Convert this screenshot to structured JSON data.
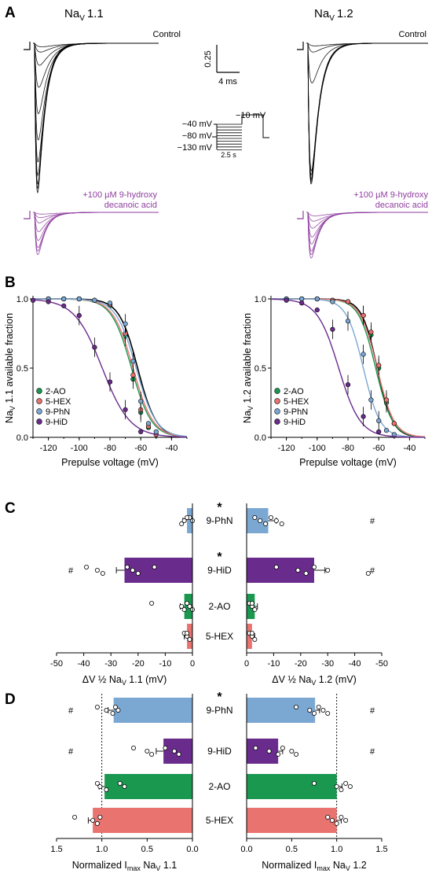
{
  "panel_letters": [
    "A",
    "B",
    "C",
    "D"
  ],
  "panel_a": {
    "title_left": "Na",
    "title_left_sub": "V",
    "title_left_num": "1.1",
    "title_right": "Na",
    "title_right_sub": "V",
    "title_right_num": "1.2",
    "control_label": "Control",
    "drug_label_1": "+100 µM 9-hydroxy",
    "drug_label_2": "decanoic acid",
    "scale_y": "0.25",
    "scale_x": "4 ms",
    "protocol": {
      "v_hold_1": "−40 mV",
      "v_hold_2": "−80 mV",
      "v_hold_3": "−130 mV",
      "v_test": "−10 mV",
      "duration": "2.5 s"
    },
    "trace_colors": {
      "control": "#000000",
      "drug": "#8e3e9e"
    }
  },
  "chart_data": [
    {
      "type": "line",
      "panel": "B-left",
      "xlabel": "Prepulse voltage (mV)",
      "ylabel_pre": "Na",
      "ylabel_sub": "V",
      "ylabel_post": " 1.1 available fraction",
      "xlim": [
        -130,
        -30
      ],
      "ylim": [
        0,
        1.0
      ],
      "xticks": [
        -120,
        -100,
        -80,
        -60,
        -40
      ],
      "yticks": [
        0.0,
        0.5,
        1.0
      ],
      "legend_position": "bottom-left",
      "series": [
        {
          "name": "2-AO",
          "color": "#1a9850",
          "v_half": -66,
          "k": 6.5,
          "x": [
            -120,
            -110,
            -100,
            -90,
            -80,
            -70,
            -65,
            -60,
            -55,
            -50
          ],
          "y": [
            1.0,
            1.0,
            1.0,
            0.99,
            0.95,
            0.73,
            0.42,
            0.18,
            0.07,
            0.02
          ]
        },
        {
          "name": "5-HEX",
          "color": "#e8736f",
          "v_half": -65,
          "k": 6.5,
          "x": [
            -120,
            -110,
            -100,
            -90,
            -80,
            -70,
            -65,
            -60,
            -55,
            -50
          ],
          "y": [
            1.0,
            1.0,
            1.0,
            0.99,
            0.96,
            0.75,
            0.45,
            0.2,
            0.08,
            0.02
          ]
        },
        {
          "name": "9-PhN",
          "color": "#7ba7d3",
          "v_half": -63,
          "k": 6.5,
          "x": [
            -120,
            -110,
            -100,
            -90,
            -80,
            -70,
            -65,
            -60,
            -55,
            -50
          ],
          "y": [
            1.0,
            1.0,
            1.0,
            0.99,
            0.97,
            0.82,
            0.55,
            0.26,
            0.1,
            0.04
          ]
        },
        {
          "name": "9-HiD",
          "color": "#6a2c8c",
          "v_half": -85,
          "k": 9,
          "x": [
            -130,
            -120,
            -110,
            -100,
            -90,
            -80,
            -70,
            -60
          ],
          "y": [
            0.99,
            0.98,
            0.95,
            0.88,
            0.65,
            0.4,
            0.2,
            0.04
          ]
        }
      ]
    },
    {
      "type": "line",
      "panel": "B-right",
      "xlabel": "Prepulse voltage (mV)",
      "ylabel_pre": "Na",
      "ylabel_sub": "V",
      "ylabel_post": " 1.2 available fraction",
      "xlim": [
        -130,
        -30
      ],
      "ylim": [
        0,
        1.0
      ],
      "xticks": [
        -120,
        -100,
        -80,
        -60,
        -40
      ],
      "yticks": [
        0.0,
        0.5,
        1.0
      ],
      "legend_position": "bottom-left",
      "series": [
        {
          "name": "2-AO",
          "color": "#1a9850",
          "v_half": -62,
          "k": 5.5,
          "x": [
            -120,
            -110,
            -100,
            -90,
            -80,
            -70,
            -65,
            -60,
            -55,
            -50
          ],
          "y": [
            1.0,
            1.0,
            1.0,
            0.99,
            0.98,
            0.88,
            0.74,
            0.5,
            0.25,
            0.1
          ]
        },
        {
          "name": "5-HEX",
          "color": "#e8736f",
          "v_half": -61,
          "k": 5.5,
          "x": [
            -120,
            -110,
            -100,
            -90,
            -80,
            -70,
            -65,
            -60,
            -55,
            -50
          ],
          "y": [
            1.0,
            1.0,
            1.0,
            0.99,
            0.98,
            0.88,
            0.76,
            0.52,
            0.27,
            0.1
          ]
        },
        {
          "name": "9-PhN",
          "color": "#7ba7d3",
          "v_half": -70,
          "k": 5.5,
          "x": [
            -120,
            -110,
            -100,
            -90,
            -80,
            -70,
            -65,
            -60,
            -55,
            -50
          ],
          "y": [
            1.0,
            1.0,
            1.0,
            0.98,
            0.84,
            0.6,
            0.27,
            0.12,
            0.05,
            0.02
          ]
        },
        {
          "name": "9-HiD",
          "color": "#6a2c8c",
          "v_half": -86,
          "k": 7,
          "x": [
            -120,
            -110,
            -100,
            -90,
            -80,
            -70,
            -60
          ],
          "y": [
            0.99,
            0.97,
            0.92,
            0.78,
            0.38,
            0.15,
            0.04
          ]
        }
      ]
    },
    {
      "type": "bar",
      "panel": "C",
      "categories": [
        "9-PhN",
        "9-HiD",
        "2-AO",
        "5-HEX"
      ],
      "colors": [
        "#7ba7d3",
        "#6a2c8c",
        "#1a9850",
        "#e8736f"
      ],
      "significance": [
        "*",
        "*",
        "",
        ""
      ],
      "left": {
        "xlabel_pre": "ΔV ½ Na",
        "xlabel_sub": "V",
        "xlabel_post": " 1.1 (mV)",
        "xlim": [
          -50,
          0
        ],
        "xticks": [
          -50,
          -40,
          -30,
          -20,
          -10,
          0
        ],
        "values": [
          -2,
          -25,
          -3,
          -2
        ],
        "errors": [
          1.5,
          3,
          1.5,
          1
        ],
        "hash": [
          "",
          "#",
          "",
          ""
        ],
        "points": [
          [
            -1,
            -3,
            -4,
            -2,
            0
          ],
          [
            -39,
            -35,
            -33,
            -24,
            -22,
            -20,
            -14
          ],
          [
            -15,
            -4,
            -3,
            -2,
            -1,
            0
          ],
          [
            -3,
            -2,
            -1,
            -2
          ]
        ]
      },
      "right": {
        "xlabel_pre": "ΔV ½ Na",
        "xlabel_sub": "V",
        "xlabel_post": " 1.2 (mV)",
        "xlim": [
          0,
          -50
        ],
        "xticks": [
          0,
          -10,
          -20,
          -30,
          -40,
          -50
        ],
        "values": [
          -8,
          -25,
          -3,
          -2
        ],
        "errors": [
          3,
          4,
          1,
          1
        ],
        "hash": [
          "#",
          "#",
          "",
          ""
        ],
        "points": [
          [
            -3,
            -5,
            -7,
            -9,
            -11,
            -13
          ],
          [
            -11,
            -19,
            -22,
            -25,
            -30,
            -45
          ],
          [
            -1,
            -2,
            -3,
            -2
          ],
          [
            -1,
            -2,
            -3,
            -2
          ]
        ]
      }
    },
    {
      "type": "bar",
      "panel": "D",
      "categories": [
        "9-PhN",
        "9-HiD",
        "2-AO",
        "5-HEX"
      ],
      "colors": [
        "#7ba7d3",
        "#6a2c8c",
        "#1a9850",
        "#e8736f"
      ],
      "significance": [
        "*",
        "",
        "",
        ""
      ],
      "left": {
        "xlabel_pre": "Normalized I",
        "xlabel_sub": "max",
        "xlabel_post": " Na",
        "xlabel_sub2": "V",
        "xlabel_post2": " 1.1",
        "xlim": [
          1.5,
          0
        ],
        "xticks": [
          1.5,
          1.0,
          0.5,
          0.0
        ],
        "values": [
          0.87,
          0.32,
          0.97,
          1.1
        ],
        "errors": [
          0.06,
          0.08,
          0.06,
          0.05
        ],
        "hash": [
          "#",
          "#",
          "",
          ""
        ],
        "points": [
          [
            1.05,
            0.95,
            0.88,
            0.85,
            0.82
          ],
          [
            0.65,
            0.5,
            0.45,
            0.3,
            0.2,
            0.15
          ],
          [
            1.05,
            1.02,
            0.95,
            0.8,
            0.75
          ],
          [
            1.3,
            1.1,
            1.05,
            1.02
          ]
        ]
      },
      "right": {
        "xlabel_pre": "Normalized I",
        "xlabel_sub": "max",
        "xlabel_post": " Na",
        "xlabel_sub2": "V",
        "xlabel_post2": " 1.2",
        "xlim": [
          0,
          1.5
        ],
        "xticks": [
          0.0,
          0.5,
          1.0,
          1.5
        ],
        "values": [
          0.76,
          0.35,
          1.0,
          1.0
        ],
        "errors": [
          0.05,
          0.05,
          0.06,
          0.05
        ],
        "hash": [
          "#",
          "#",
          "",
          ""
        ],
        "points": [
          [
            0.55,
            0.7,
            0.75,
            0.8,
            0.85,
            0.9
          ],
          [
            0.1,
            0.25,
            0.35,
            0.4,
            0.5,
            0.55
          ],
          [
            0.75,
            1.0,
            1.05,
            1.1,
            1.15
          ],
          [
            0.9,
            0.95,
            1.0,
            1.05,
            1.1
          ]
        ]
      }
    }
  ]
}
